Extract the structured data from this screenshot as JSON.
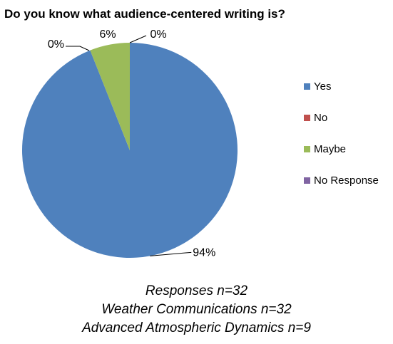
{
  "chart_data": {
    "type": "pie",
    "title": "Do you know what audience-centered writing is?",
    "categories": [
      "Yes",
      "No",
      "Maybe",
      "No Response"
    ],
    "values": [
      94,
      0,
      6,
      0
    ],
    "labels": [
      "94%",
      "0%",
      "6%",
      "0%"
    ],
    "colors": [
      "#4F81BD",
      "#C0504D",
      "#9BBB59",
      "#8064A2"
    ],
    "legend_position": "right",
    "notes": [
      "Responses n=32",
      "Weather Communications n=32",
      "Advanced Atmospheric Dynamics n=9"
    ]
  }
}
